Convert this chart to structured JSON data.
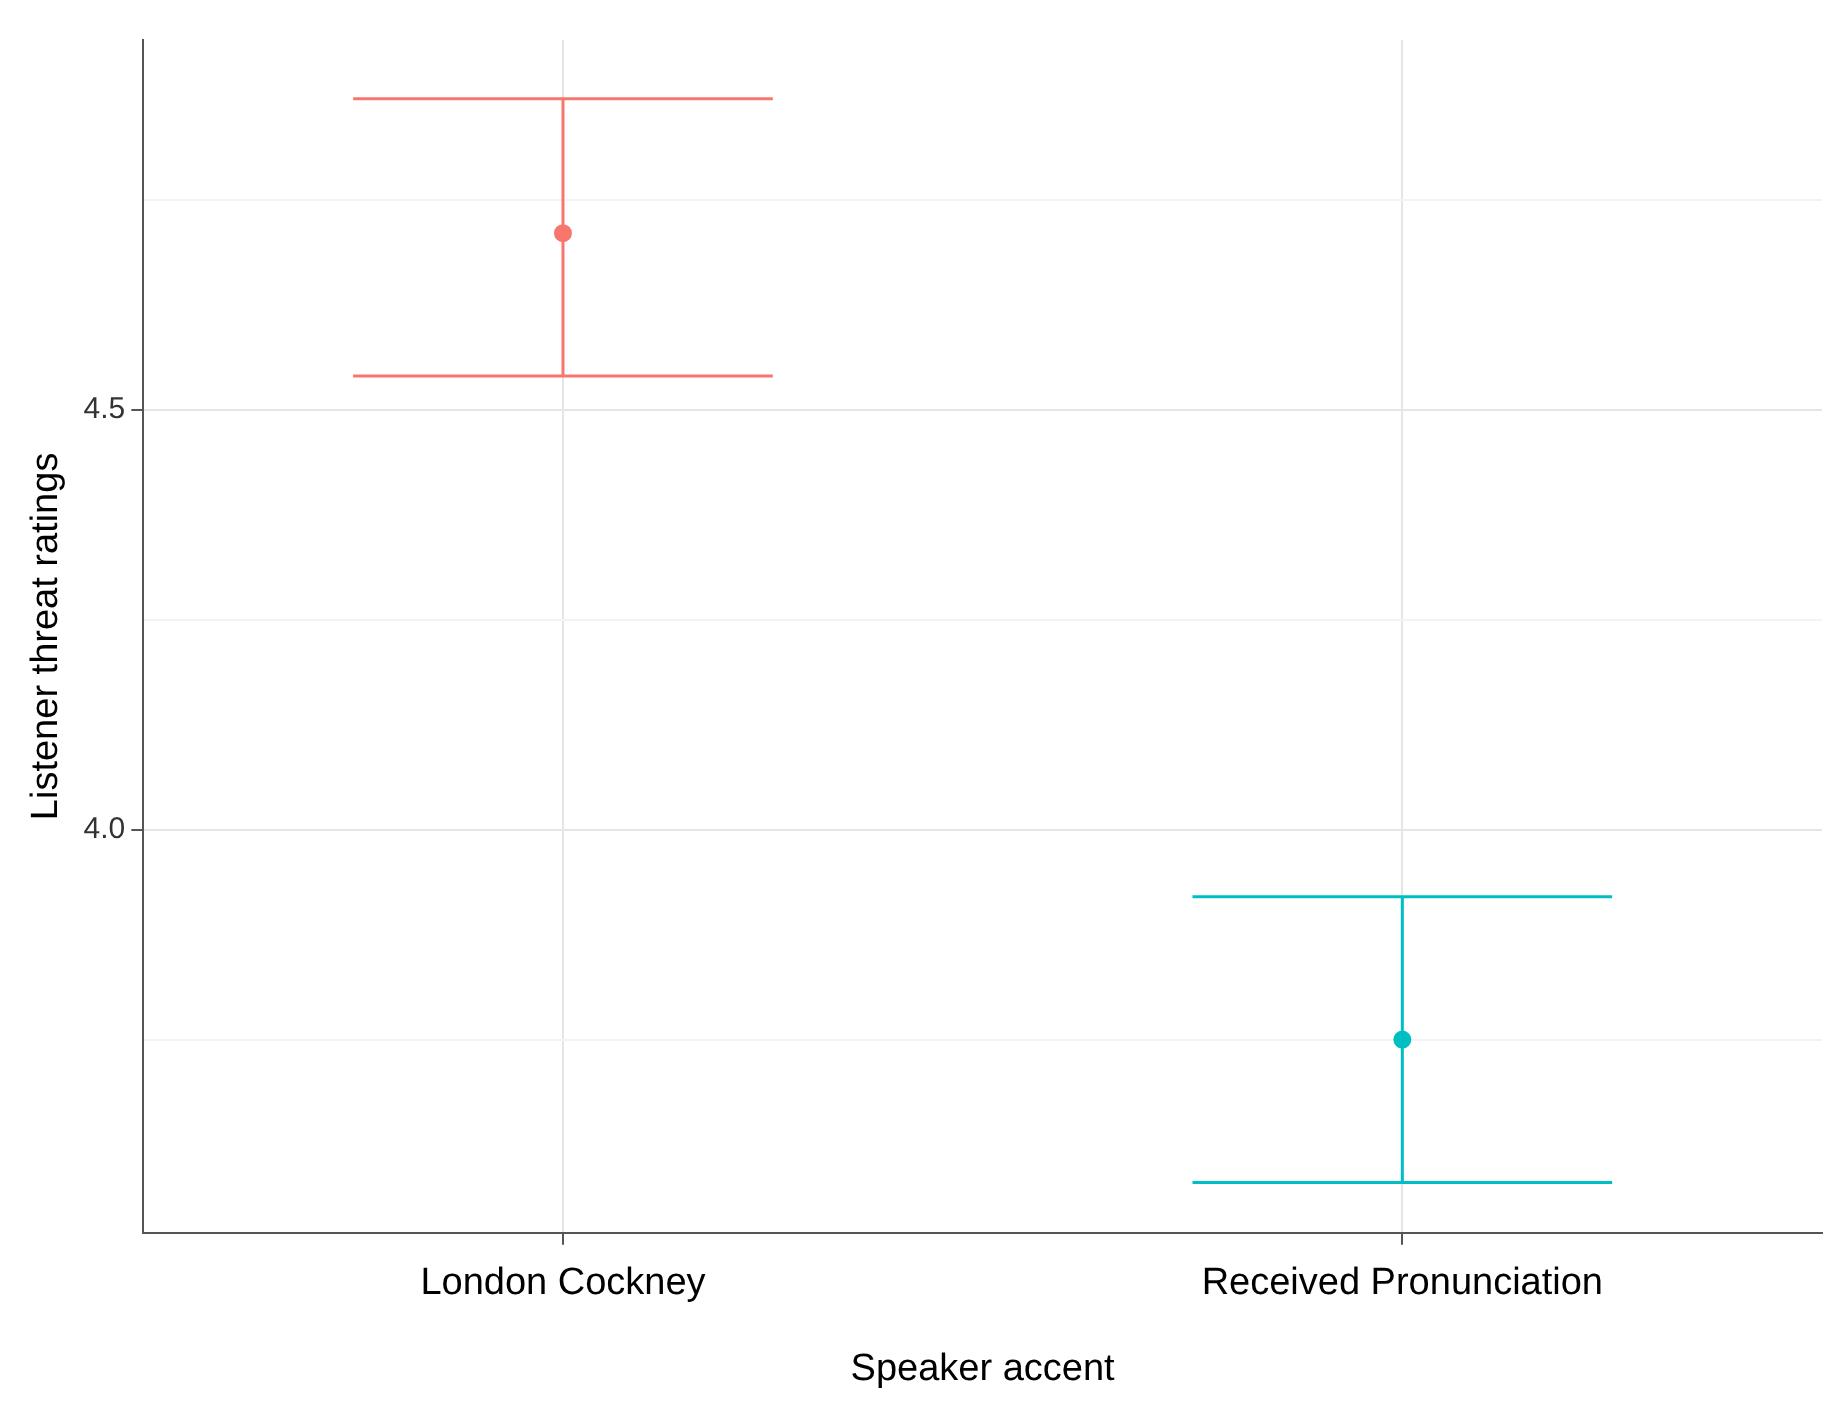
{
  "chart_data": {
    "type": "scatter",
    "xlabel": "Speaker accent",
    "ylabel": "Listener threat ratings",
    "categories": [
      "London Cockney",
      "Received Pronunciation"
    ],
    "values": [
      4.71,
      3.75
    ],
    "colors": [
      "#f8766d",
      "#00bfc4"
    ],
    "errors": [
      [
        4.54,
        4.87
      ],
      [
        3.58,
        3.92
      ]
    ],
    "ylim": [
      3.52,
      4.94
    ],
    "yticks": [
      {
        "value": 3.75,
        "label": null
      },
      {
        "value": 4.0,
        "label": "4.0"
      },
      {
        "value": 4.25,
        "label": null
      },
      {
        "value": 4.5,
        "label": "4.5"
      },
      {
        "value": 4.75,
        "label": null
      }
    ],
    "grid": true,
    "marker": "circle",
    "legend": false
  }
}
